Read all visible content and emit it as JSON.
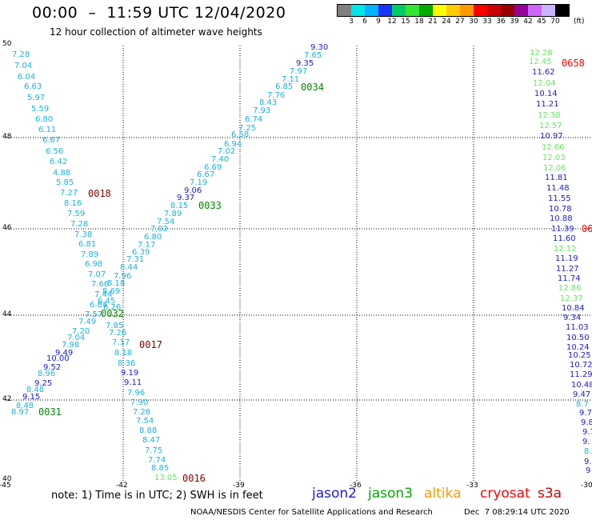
{
  "header": {
    "title": "00:00  –  11:59 UTC 12/04/2020",
    "subtitle": "12 hour collection of altimeter wave heights"
  },
  "legend": {
    "unit": "(ft)",
    "swatches": [
      {
        "color": "#808080",
        "tick": "3"
      },
      {
        "color": "#00e5e5",
        "tick": "6"
      },
      {
        "color": "#00b2ff",
        "tick": "9"
      },
      {
        "color": "#1a33ff",
        "tick": "12"
      },
      {
        "color": "#00cc66",
        "tick": "15"
      },
      {
        "color": "#33e533",
        "tick": "18"
      },
      {
        "color": "#00aa00",
        "tick": "21"
      },
      {
        "color": "#ffff00",
        "tick": "24"
      },
      {
        "color": "#ffcc00",
        "tick": "27"
      },
      {
        "color": "#ff9900",
        "tick": "30"
      },
      {
        "color": "#ff0000",
        "tick": "33"
      },
      {
        "color": "#cc0000",
        "tick": "36"
      },
      {
        "color": "#990000",
        "tick": "39"
      },
      {
        "color": "#990099",
        "tick": "42"
      },
      {
        "color": "#cc66ff",
        "tick": "45"
      },
      {
        "color": "#ccb3ff",
        "tick": "70"
      },
      {
        "color": "#000000",
        "tick": ""
      }
    ]
  },
  "map": {
    "x_ticks": [
      "-45",
      "-42",
      "-39",
      "-36",
      "-33",
      "-30"
    ],
    "y_ticks": [
      "50",
      "48",
      "46",
      "44",
      "42",
      "40"
    ],
    "lon_range": [
      -45,
      -30
    ],
    "lat_range": [
      40,
      50
    ]
  },
  "colors": {
    "cyan": "#1ab2e0",
    "blue": "#1a1ad8",
    "light_green": "#66e666",
    "green": "#008800",
    "dark_red": "#880000",
    "red": "#ff0000"
  },
  "tracks": [
    {
      "id": "0018",
      "color": "#880000"
    },
    {
      "id": "0033",
      "color": "#008800"
    },
    {
      "id": "0034",
      "color": "#008800"
    },
    {
      "id": "0032",
      "color": "#008800"
    },
    {
      "id": "0017",
      "color": "#880000"
    },
    {
      "id": "0031",
      "color": "#008800"
    },
    {
      "id": "0016",
      "color": "#880000"
    },
    {
      "id": "0658",
      "color": "#ff0000"
    },
    {
      "id": "06",
      "color": "#ff0000"
    }
  ],
  "labels": [
    {
      "text": "7.28",
      "color": "cyan"
    },
    {
      "text": "7.04",
      "color": "cyan"
    },
    {
      "text": "6.04",
      "color": "cyan"
    },
    {
      "text": "6.63",
      "color": "cyan"
    },
    {
      "text": "5.97",
      "color": "cyan"
    },
    {
      "text": "5.59",
      "color": "cyan"
    },
    {
      "text": "6.80",
      "color": "cyan"
    },
    {
      "text": "6.11",
      "color": "cyan"
    },
    {
      "text": "6.67",
      "color": "cyan"
    },
    {
      "text": "6.56",
      "color": "cyan"
    },
    {
      "text": "6.42",
      "color": "cyan"
    },
    {
      "text": "4.88",
      "color": "cyan"
    },
    {
      "text": "5.85",
      "color": "cyan"
    },
    {
      "text": "7.27",
      "color": "cyan"
    },
    {
      "text": "8.16",
      "color": "cyan"
    },
    {
      "text": "7.59",
      "color": "cyan"
    },
    {
      "text": "7.28",
      "color": "cyan"
    },
    {
      "text": "7.38",
      "color": "cyan"
    },
    {
      "text": "6.81",
      "color": "cyan"
    },
    {
      "text": "7.89",
      "color": "cyan"
    },
    {
      "text": "6.98",
      "color": "cyan"
    },
    {
      "text": "7.07",
      "color": "cyan"
    },
    {
      "text": "7.66",
      "color": "cyan"
    },
    {
      "text": "7.44",
      "color": "cyan"
    },
    {
      "text": "6.84",
      "color": "cyan"
    },
    {
      "text": "7.57",
      "color": "cyan"
    },
    {
      "text": "7.49",
      "color": "cyan"
    },
    {
      "text": "7.20",
      "color": "cyan"
    },
    {
      "text": "7.04",
      "color": "cyan"
    },
    {
      "text": "7.98",
      "color": "cyan"
    },
    {
      "text": "9.49",
      "color": "blue"
    },
    {
      "text": "10.00",
      "color": "blue"
    },
    {
      "text": "9.52",
      "color": "blue"
    },
    {
      "text": "8.96",
      "color": "cyan"
    },
    {
      "text": "9.25",
      "color": "blue"
    },
    {
      "text": "8.48",
      "color": "cyan"
    },
    {
      "text": "9.15",
      "color": "blue"
    },
    {
      "text": "8.48",
      "color": "cyan"
    },
    {
      "text": "8.97",
      "color": "cyan"
    },
    {
      "text": "9.30",
      "color": "blue"
    },
    {
      "text": "7.65",
      "color": "cyan"
    },
    {
      "text": "9.35",
      "color": "blue"
    },
    {
      "text": "7.97",
      "color": "cyan"
    },
    {
      "text": "7.11",
      "color": "cyan"
    },
    {
      "text": "6.85",
      "color": "cyan"
    },
    {
      "text": "7.76",
      "color": "cyan"
    },
    {
      "text": "8.43",
      "color": "cyan"
    },
    {
      "text": "7.93",
      "color": "cyan"
    },
    {
      "text": "6.74",
      "color": "cyan"
    },
    {
      "text": "7.25",
      "color": "cyan"
    },
    {
      "text": "6.58",
      "color": "cyan"
    },
    {
      "text": "6.94",
      "color": "cyan"
    },
    {
      "text": "7.02",
      "color": "cyan"
    },
    {
      "text": "7.40",
      "color": "cyan"
    },
    {
      "text": "6.69",
      "color": "cyan"
    },
    {
      "text": "6.67",
      "color": "cyan"
    },
    {
      "text": "7.19",
      "color": "cyan"
    },
    {
      "text": "9.06",
      "color": "blue"
    },
    {
      "text": "9.37",
      "color": "blue"
    },
    {
      "text": "8.15",
      "color": "cyan"
    },
    {
      "text": "7.89",
      "color": "cyan"
    },
    {
      "text": "7.54",
      "color": "cyan"
    },
    {
      "text": "7.02",
      "color": "cyan"
    },
    {
      "text": "6.80",
      "color": "cyan"
    },
    {
      "text": "7.17",
      "color": "cyan"
    },
    {
      "text": "6.39",
      "color": "cyan"
    },
    {
      "text": "7.31",
      "color": "cyan"
    },
    {
      "text": "8.44",
      "color": "cyan"
    },
    {
      "text": "7.96",
      "color": "cyan"
    },
    {
      "text": "8.18",
      "color": "cyan"
    },
    {
      "text": "8.69",
      "color": "cyan"
    },
    {
      "text": "6.45",
      "color": "cyan"
    },
    {
      "text": "6.26",
      "color": "cyan"
    },
    {
      "text": "7.85",
      "color": "cyan"
    },
    {
      "text": "7.26",
      "color": "cyan"
    },
    {
      "text": "7.17",
      "color": "cyan"
    },
    {
      "text": "8.18",
      "color": "cyan"
    },
    {
      "text": "8.36",
      "color": "cyan"
    },
    {
      "text": "9.19",
      "color": "blue"
    },
    {
      "text": "9.11",
      "color": "blue"
    },
    {
      "text": "7.96",
      "color": "cyan"
    },
    {
      "text": "7.90",
      "color": "cyan"
    },
    {
      "text": "7.28",
      "color": "cyan"
    },
    {
      "text": "7.54",
      "color": "cyan"
    },
    {
      "text": "8.88",
      "color": "cyan"
    },
    {
      "text": "8.47",
      "color": "cyan"
    },
    {
      "text": "7.75",
      "color": "cyan"
    },
    {
      "text": "7.74",
      "color": "cyan"
    },
    {
      "text": "8.85",
      "color": "cyan"
    },
    {
      "text": "13.05",
      "color": "light_green"
    },
    {
      "text": "12.28",
      "color": "light_green"
    },
    {
      "text": "12.45",
      "color": "light_green"
    },
    {
      "text": "11.62",
      "color": "blue"
    },
    {
      "text": "12.04",
      "color": "light_green"
    },
    {
      "text": "10.14",
      "color": "blue"
    },
    {
      "text": "11.21",
      "color": "blue"
    },
    {
      "text": "12.38",
      "color": "light_green"
    },
    {
      "text": "12.57",
      "color": "light_green"
    },
    {
      "text": "10.97",
      "color": "blue"
    },
    {
      "text": "12.66",
      "color": "light_green"
    },
    {
      "text": "12.03",
      "color": "light_green"
    },
    {
      "text": "12.06",
      "color": "light_green"
    },
    {
      "text": "11.81",
      "color": "blue"
    },
    {
      "text": "11.48",
      "color": "blue"
    },
    {
      "text": "11.55",
      "color": "blue"
    },
    {
      "text": "10.78",
      "color": "blue"
    },
    {
      "text": "10.88",
      "color": "blue"
    },
    {
      "text": "11.39",
      "color": "blue"
    },
    {
      "text": "11.60",
      "color": "blue"
    },
    {
      "text": "12.12",
      "color": "light_green"
    },
    {
      "text": "11.19",
      "color": "blue"
    },
    {
      "text": "11.27",
      "color": "blue"
    },
    {
      "text": "11.74",
      "color": "blue"
    },
    {
      "text": "12.86",
      "color": "light_green"
    },
    {
      "text": "12.37",
      "color": "light_green"
    },
    {
      "text": "10.84",
      "color": "blue"
    },
    {
      "text": "9.34",
      "color": "blue"
    },
    {
      "text": "11.03",
      "color": "blue"
    },
    {
      "text": "10.50",
      "color": "blue"
    },
    {
      "text": "10.24",
      "color": "blue"
    },
    {
      "text": "10.25",
      "color": "blue"
    },
    {
      "text": "10.72",
      "color": "blue"
    },
    {
      "text": "11.29",
      "color": "blue"
    },
    {
      "text": "10.48",
      "color": "blue"
    },
    {
      "text": "9.47",
      "color": "blue"
    },
    {
      "text": "8.7",
      "color": "cyan"
    },
    {
      "text": "9.7",
      "color": "blue"
    },
    {
      "text": "9.8",
      "color": "blue"
    },
    {
      "text": "9.7",
      "color": "blue"
    },
    {
      "text": "9.",
      "color": "blue"
    },
    {
      "text": "8.",
      "color": "cyan"
    },
    {
      "text": "9.",
      "color": "blue"
    },
    {
      "text": "9",
      "color": "blue"
    }
  ],
  "footer": {
    "note": "note: 1) Time is in UTC; 2) SWH is in feet",
    "satellites": [
      {
        "name": "jason2",
        "color": "#1a1ad8"
      },
      {
        "name": "jason3",
        "color": "#00aa00"
      },
      {
        "name": "altika",
        "color": "#ff9900"
      },
      {
        "name": "cryosat",
        "color": "#ff0000"
      },
      {
        "name": "s3a",
        "color": "#cc0000"
      }
    ],
    "credit": "NOAA/NESDIS Center for Satellite Applications and Research",
    "timestamp": "Dec  7 08:29:14 UTC 2020"
  }
}
